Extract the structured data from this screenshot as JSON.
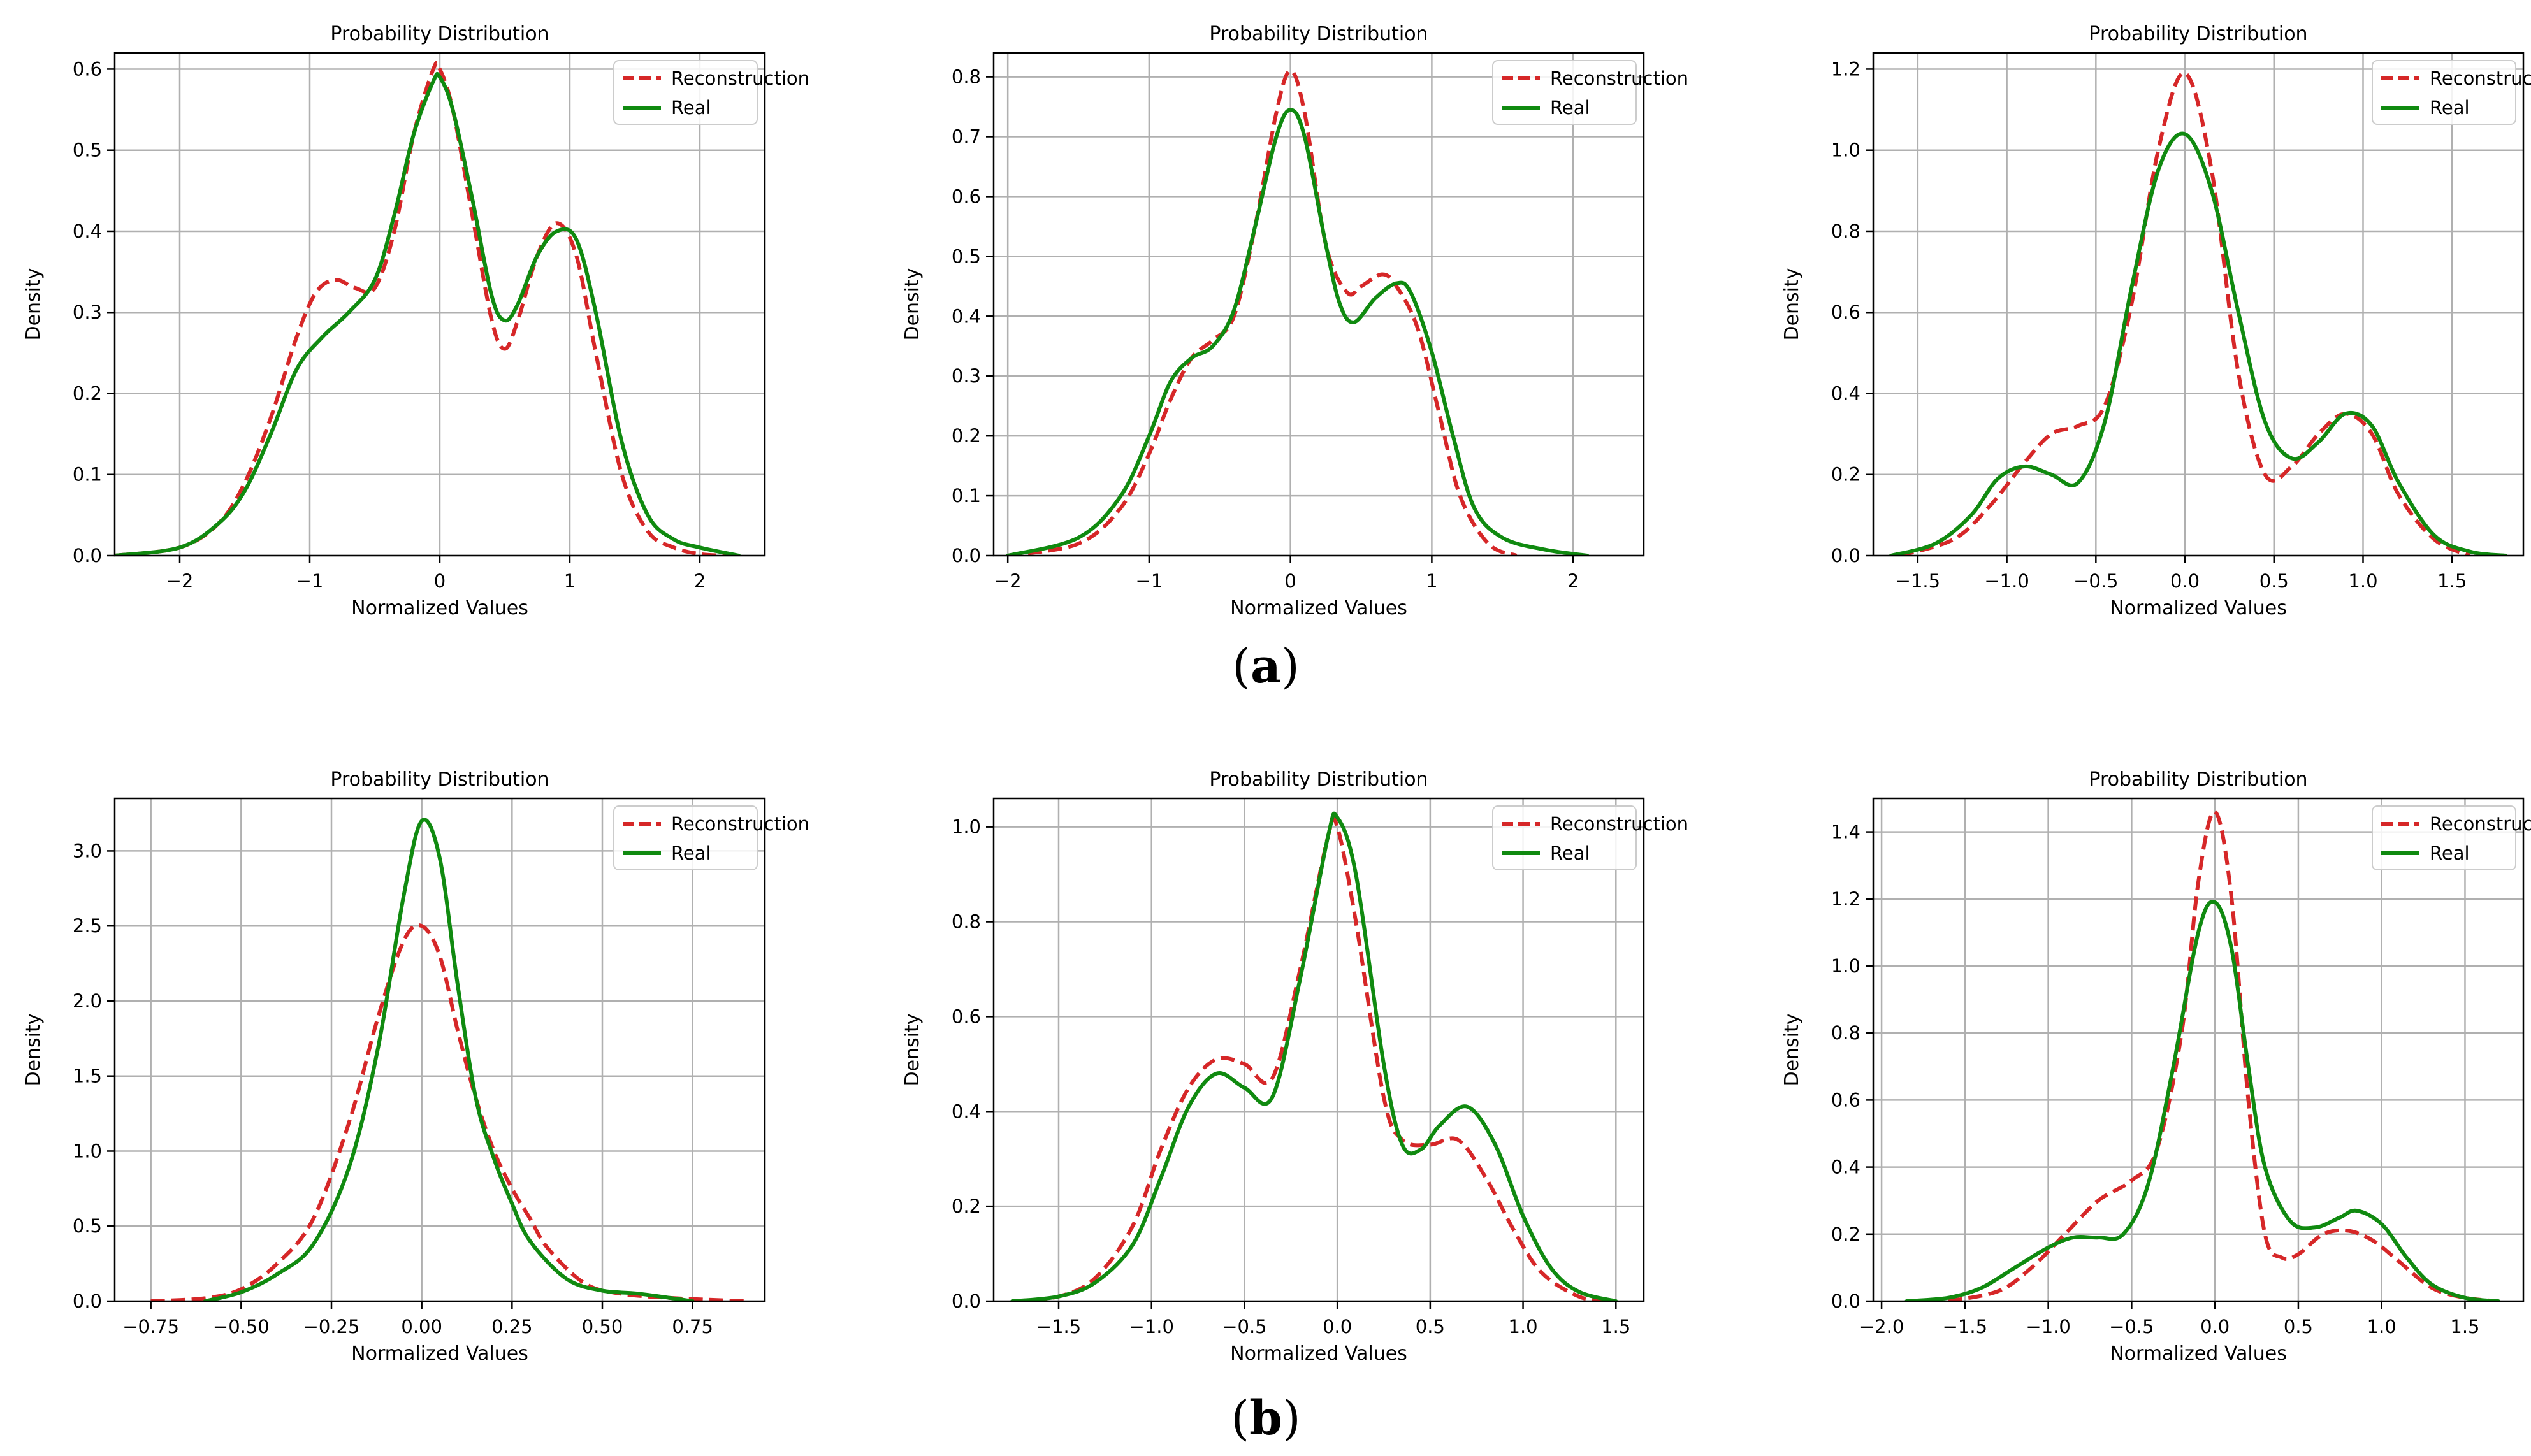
{
  "figure": {
    "caption_a": "a",
    "caption_b": "b"
  },
  "colors": {
    "reconstruction": "#d62728",
    "real": "#108a10",
    "grid": "#b0b0b0",
    "axis": "#000000"
  },
  "chart_data": [
    {
      "type": "line",
      "title": "Probability Distribution",
      "xlabel": "Normalized Values",
      "ylabel": "Density",
      "xlim": [
        -2.5,
        2.5
      ],
      "ylim": [
        0,
        0.62
      ],
      "xticks": [
        -2,
        -1,
        0,
        1,
        2
      ],
      "xtick_labels": [
        "−2",
        "−1",
        "0",
        "1",
        "2"
      ],
      "yticks": [
        0,
        0.1,
        0.2,
        0.3,
        0.4,
        0.5,
        0.6
      ],
      "ytick_labels": [
        "0.0",
        "0.1",
        "0.2",
        "0.3",
        "0.4",
        "0.5",
        "0.6"
      ],
      "legend": "top-right",
      "series": [
        {
          "name": "Reconstruction",
          "style": "dashed",
          "x": [
            -2.5,
            -2.0,
            -1.7,
            -1.5,
            -1.3,
            -1.1,
            -0.95,
            -0.8,
            -0.65,
            -0.5,
            -0.35,
            -0.2,
            -0.05,
            0.0,
            0.1,
            0.25,
            0.4,
            0.5,
            0.6,
            0.75,
            0.9,
            1.05,
            1.2,
            1.4,
            1.6,
            1.8,
            2.0,
            2.2
          ],
          "y": [
            0.0,
            0.01,
            0.04,
            0.09,
            0.17,
            0.27,
            0.325,
            0.34,
            0.33,
            0.33,
            0.4,
            0.52,
            0.6,
            0.6,
            0.55,
            0.42,
            0.29,
            0.255,
            0.29,
            0.37,
            0.41,
            0.37,
            0.25,
            0.1,
            0.03,
            0.01,
            0.002,
            0.0
          ]
        },
        {
          "name": "Real",
          "style": "solid",
          "x": [
            -2.5,
            -2.0,
            -1.7,
            -1.5,
            -1.3,
            -1.1,
            -0.9,
            -0.7,
            -0.5,
            -0.35,
            -0.2,
            -0.05,
            0.0,
            0.1,
            0.25,
            0.4,
            0.5,
            0.6,
            0.75,
            0.9,
            1.05,
            1.2,
            1.4,
            1.6,
            1.8,
            2.0,
            2.3
          ],
          "y": [
            0.0,
            0.01,
            0.04,
            0.08,
            0.15,
            0.23,
            0.27,
            0.3,
            0.34,
            0.42,
            0.52,
            0.585,
            0.59,
            0.55,
            0.44,
            0.32,
            0.29,
            0.31,
            0.37,
            0.4,
            0.39,
            0.3,
            0.14,
            0.05,
            0.02,
            0.01,
            0.0
          ]
        }
      ]
    },
    {
      "type": "line",
      "title": "Probability Distribution",
      "xlabel": "Normalized Values",
      "ylabel": "Density",
      "xlim": [
        -2.1,
        2.5
      ],
      "ylim": [
        0,
        0.84
      ],
      "xticks": [
        -2,
        -1,
        0,
        1,
        2
      ],
      "xtick_labels": [
        "−2",
        "−1",
        "0",
        "1",
        "2"
      ],
      "yticks": [
        0,
        0.1,
        0.2,
        0.3,
        0.4,
        0.5,
        0.6,
        0.7,
        0.8
      ],
      "ytick_labels": [
        "0.0",
        "0.1",
        "0.2",
        "0.3",
        "0.4",
        "0.5",
        "0.6",
        "0.7",
        "0.8"
      ],
      "legend": "top-right",
      "series": [
        {
          "name": "Reconstruction",
          "style": "dashed",
          "x": [
            -2.0,
            -1.5,
            -1.2,
            -1.0,
            -0.85,
            -0.7,
            -0.55,
            -0.4,
            -0.25,
            -0.1,
            0.0,
            0.1,
            0.25,
            0.4,
            0.5,
            0.65,
            0.75,
            0.9,
            1.05,
            1.2,
            1.4,
            1.6
          ],
          "y": [
            0.0,
            0.02,
            0.08,
            0.17,
            0.26,
            0.33,
            0.36,
            0.4,
            0.55,
            0.74,
            0.81,
            0.74,
            0.52,
            0.44,
            0.45,
            0.47,
            0.45,
            0.38,
            0.24,
            0.1,
            0.02,
            0.0
          ]
        },
        {
          "name": "Real",
          "style": "solid",
          "x": [
            -2.0,
            -1.5,
            -1.2,
            -1.0,
            -0.85,
            -0.7,
            -0.55,
            -0.4,
            -0.25,
            -0.1,
            0.0,
            0.1,
            0.25,
            0.35,
            0.45,
            0.6,
            0.75,
            0.85,
            1.0,
            1.15,
            1.3,
            1.5,
            1.8,
            2.1
          ],
          "y": [
            0.0,
            0.03,
            0.1,
            0.2,
            0.29,
            0.33,
            0.35,
            0.41,
            0.55,
            0.7,
            0.745,
            0.7,
            0.52,
            0.42,
            0.39,
            0.43,
            0.455,
            0.44,
            0.34,
            0.2,
            0.08,
            0.03,
            0.01,
            0.0
          ]
        }
      ]
    },
    {
      "type": "line",
      "title": "Probability Distribution",
      "xlabel": "Normalized Values",
      "ylabel": "Density",
      "xlim": [
        -1.75,
        1.9
      ],
      "ylim": [
        0,
        1.24
      ],
      "xticks": [
        -1.5,
        -1.0,
        -0.5,
        0.0,
        0.5,
        1.0,
        1.5
      ],
      "xtick_labels": [
        "−1.5",
        "−1.0",
        "−0.5",
        "0.0",
        "0.5",
        "1.0",
        "1.5"
      ],
      "yticks": [
        0,
        0.2,
        0.4,
        0.6,
        0.8,
        1.0,
        1.2
      ],
      "ytick_labels": [
        "0.0",
        "0.2",
        "0.4",
        "0.6",
        "0.8",
        "1.0",
        "1.2"
      ],
      "legend": "top-right",
      "series": [
        {
          "name": "Reconstruction",
          "style": "dashed",
          "x": [
            -1.6,
            -1.3,
            -1.1,
            -0.9,
            -0.75,
            -0.6,
            -0.45,
            -0.3,
            -0.15,
            0.0,
            0.15,
            0.3,
            0.45,
            0.6,
            0.75,
            0.9,
            1.05,
            1.2,
            1.4,
            1.6
          ],
          "y": [
            0.0,
            0.04,
            0.12,
            0.23,
            0.3,
            0.32,
            0.37,
            0.62,
            1.0,
            1.19,
            0.95,
            0.45,
            0.2,
            0.22,
            0.3,
            0.35,
            0.3,
            0.15,
            0.04,
            0.0
          ]
        },
        {
          "name": "Real",
          "style": "solid",
          "x": [
            -1.65,
            -1.4,
            -1.2,
            -1.05,
            -0.9,
            -0.75,
            -0.6,
            -0.45,
            -0.3,
            -0.15,
            0.0,
            0.15,
            0.3,
            0.45,
            0.6,
            0.75,
            0.9,
            1.05,
            1.2,
            1.4,
            1.6,
            1.8
          ],
          "y": [
            0.0,
            0.03,
            0.1,
            0.19,
            0.22,
            0.2,
            0.18,
            0.33,
            0.66,
            0.95,
            1.04,
            0.9,
            0.6,
            0.33,
            0.24,
            0.28,
            0.35,
            0.32,
            0.18,
            0.05,
            0.01,
            0.0
          ]
        }
      ]
    },
    {
      "type": "line",
      "title": "Probability Distribution",
      "xlabel": "Normalized Values",
      "ylabel": "Density",
      "xlim": [
        -0.85,
        0.95
      ],
      "ylim": [
        0,
        3.35
      ],
      "xticks": [
        -0.75,
        -0.5,
        -0.25,
        0.0,
        0.25,
        0.5,
        0.75
      ],
      "xtick_labels": [
        "−0.75",
        "−0.50",
        "−0.25",
        "0.00",
        "0.25",
        "0.50",
        "0.75"
      ],
      "yticks": [
        0,
        0.5,
        1.0,
        1.5,
        2.0,
        2.5,
        3.0
      ],
      "ytick_labels": [
        "0.0",
        "0.5",
        "1.0",
        "1.5",
        "2.0",
        "2.5",
        "3.0"
      ],
      "legend": "top-right",
      "series": [
        {
          "name": "Reconstruction",
          "style": "dashed",
          "x": [
            -0.75,
            -0.6,
            -0.5,
            -0.4,
            -0.3,
            -0.2,
            -0.12,
            -0.05,
            0.0,
            0.05,
            0.1,
            0.15,
            0.2,
            0.25,
            0.3,
            0.35,
            0.45,
            0.55,
            0.7,
            0.9
          ],
          "y": [
            0.0,
            0.02,
            0.08,
            0.25,
            0.55,
            1.2,
            1.9,
            2.4,
            2.5,
            2.3,
            1.8,
            1.35,
            1.0,
            0.75,
            0.55,
            0.35,
            0.12,
            0.05,
            0.02,
            0.0
          ]
        },
        {
          "name": "Real",
          "style": "solid",
          "x": [
            -0.6,
            -0.5,
            -0.4,
            -0.3,
            -0.2,
            -0.12,
            -0.05,
            0.0,
            0.05,
            0.1,
            0.15,
            0.2,
            0.25,
            0.3,
            0.4,
            0.5,
            0.6,
            0.75
          ],
          "y": [
            0.0,
            0.06,
            0.18,
            0.38,
            0.9,
            1.7,
            2.7,
            3.2,
            2.95,
            2.1,
            1.35,
            0.95,
            0.65,
            0.4,
            0.15,
            0.07,
            0.05,
            0.0
          ]
        }
      ]
    },
    {
      "type": "line",
      "title": "Probability Distribution",
      "xlabel": "Normalized Values",
      "ylabel": "Density",
      "xlim": [
        -1.85,
        1.65
      ],
      "ylim": [
        0,
        1.06
      ],
      "xticks": [
        -1.5,
        -1.0,
        -0.5,
        0.0,
        0.5,
        1.0,
        1.5
      ],
      "xtick_labels": [
        "−1.5",
        "−1.0",
        "−0.5",
        "0.0",
        "0.5",
        "1.0",
        "1.5"
      ],
      "yticks": [
        0,
        0.2,
        0.4,
        0.6,
        0.8,
        1.0
      ],
      "ytick_labels": [
        "0.0",
        "0.2",
        "0.4",
        "0.6",
        "0.8",
        "1.0"
      ],
      "legend": "top-right",
      "series": [
        {
          "name": "Reconstruction",
          "style": "dashed",
          "x": [
            -1.75,
            -1.5,
            -1.3,
            -1.1,
            -0.95,
            -0.8,
            -0.65,
            -0.5,
            -0.35,
            -0.2,
            -0.05,
            0.0,
            0.1,
            0.25,
            0.35,
            0.5,
            0.65,
            0.8,
            0.95,
            1.1,
            1.3,
            1.45
          ],
          "y": [
            0.0,
            0.01,
            0.05,
            0.16,
            0.32,
            0.45,
            0.51,
            0.5,
            0.47,
            0.7,
            0.98,
            1.0,
            0.8,
            0.43,
            0.34,
            0.33,
            0.34,
            0.26,
            0.15,
            0.06,
            0.01,
            0.0
          ]
        },
        {
          "name": "Real",
          "style": "solid",
          "x": [
            -1.75,
            -1.5,
            -1.3,
            -1.1,
            -0.95,
            -0.8,
            -0.65,
            -0.5,
            -0.35,
            -0.2,
            -0.05,
            0.0,
            0.1,
            0.25,
            0.35,
            0.45,
            0.55,
            0.7,
            0.85,
            1.0,
            1.15,
            1.3,
            1.5
          ],
          "y": [
            0.0,
            0.01,
            0.04,
            0.12,
            0.26,
            0.41,
            0.48,
            0.45,
            0.43,
            0.68,
            0.98,
            1.02,
            0.9,
            0.5,
            0.33,
            0.32,
            0.37,
            0.41,
            0.33,
            0.18,
            0.07,
            0.02,
            0.0
          ]
        }
      ]
    },
    {
      "type": "line",
      "title": "Probability Distribution",
      "xlabel": "Normalized Values",
      "ylabel": "Density",
      "xlim": [
        -2.05,
        1.85
      ],
      "ylim": [
        0,
        1.5
      ],
      "xticks": [
        -2.0,
        -1.5,
        -1.0,
        -0.5,
        0.0,
        0.5,
        1.0,
        1.5
      ],
      "xtick_labels": [
        "−2.0",
        "−1.5",
        "−1.0",
        "−0.5",
        "0.0",
        "0.5",
        "1.0",
        "1.5"
      ],
      "yticks": [
        0,
        0.2,
        0.4,
        0.6,
        0.8,
        1.0,
        1.2,
        1.4
      ],
      "ytick_labels": [
        "0.0",
        "0.2",
        "0.4",
        "0.6",
        "0.8",
        "1.0",
        "1.2",
        "1.4"
      ],
      "legend": "top-right",
      "series": [
        {
          "name": "Reconstruction",
          "style": "dashed",
          "x": [
            -1.6,
            -1.3,
            -1.1,
            -0.9,
            -0.7,
            -0.5,
            -0.35,
            -0.2,
            -0.1,
            0.0,
            0.1,
            0.2,
            0.3,
            0.4,
            0.5,
            0.65,
            0.8,
            0.95,
            1.1,
            1.3,
            1.5,
            1.7
          ],
          "y": [
            0.0,
            0.03,
            0.1,
            0.2,
            0.3,
            0.36,
            0.45,
            0.8,
            1.25,
            1.46,
            1.2,
            0.6,
            0.2,
            0.13,
            0.14,
            0.2,
            0.21,
            0.18,
            0.12,
            0.04,
            0.01,
            0.0
          ]
        },
        {
          "name": "Real",
          "style": "solid",
          "x": [
            -1.85,
            -1.6,
            -1.4,
            -1.2,
            -1.0,
            -0.85,
            -0.7,
            -0.55,
            -0.4,
            -0.25,
            -0.1,
            0.0,
            0.1,
            0.2,
            0.3,
            0.45,
            0.6,
            0.75,
            0.85,
            1.0,
            1.15,
            1.3,
            1.5,
            1.7
          ],
          "y": [
            0.0,
            0.01,
            0.04,
            0.1,
            0.16,
            0.19,
            0.19,
            0.2,
            0.35,
            0.7,
            1.1,
            1.19,
            1.05,
            0.7,
            0.4,
            0.24,
            0.22,
            0.25,
            0.27,
            0.23,
            0.13,
            0.05,
            0.01,
            0.0
          ]
        }
      ]
    }
  ]
}
